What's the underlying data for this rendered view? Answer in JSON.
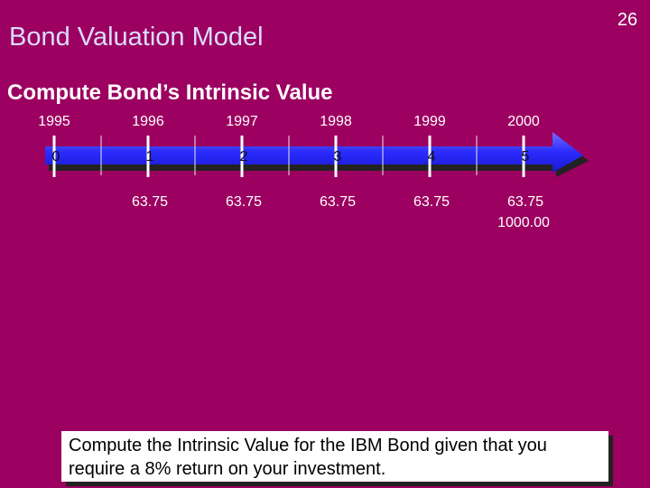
{
  "page_number": "26",
  "title": "Bond Valuation Model",
  "subtitle": "Compute Bond’s Intrinsic Value",
  "timeline": {
    "years": [
      "1995",
      "1996",
      "1997",
      "1998",
      "1999",
      "2000"
    ],
    "periods": [
      "0",
      "1",
      "2",
      "3",
      "4",
      "5"
    ],
    "cash_flows": [
      "63.75",
      "63.75",
      "63.75",
      "63.75",
      "63.75"
    ],
    "principal": "1000.00"
  },
  "note": "Compute the Intrinsic Value for the IBM Bond given that you require a 8% return on your investment."
}
